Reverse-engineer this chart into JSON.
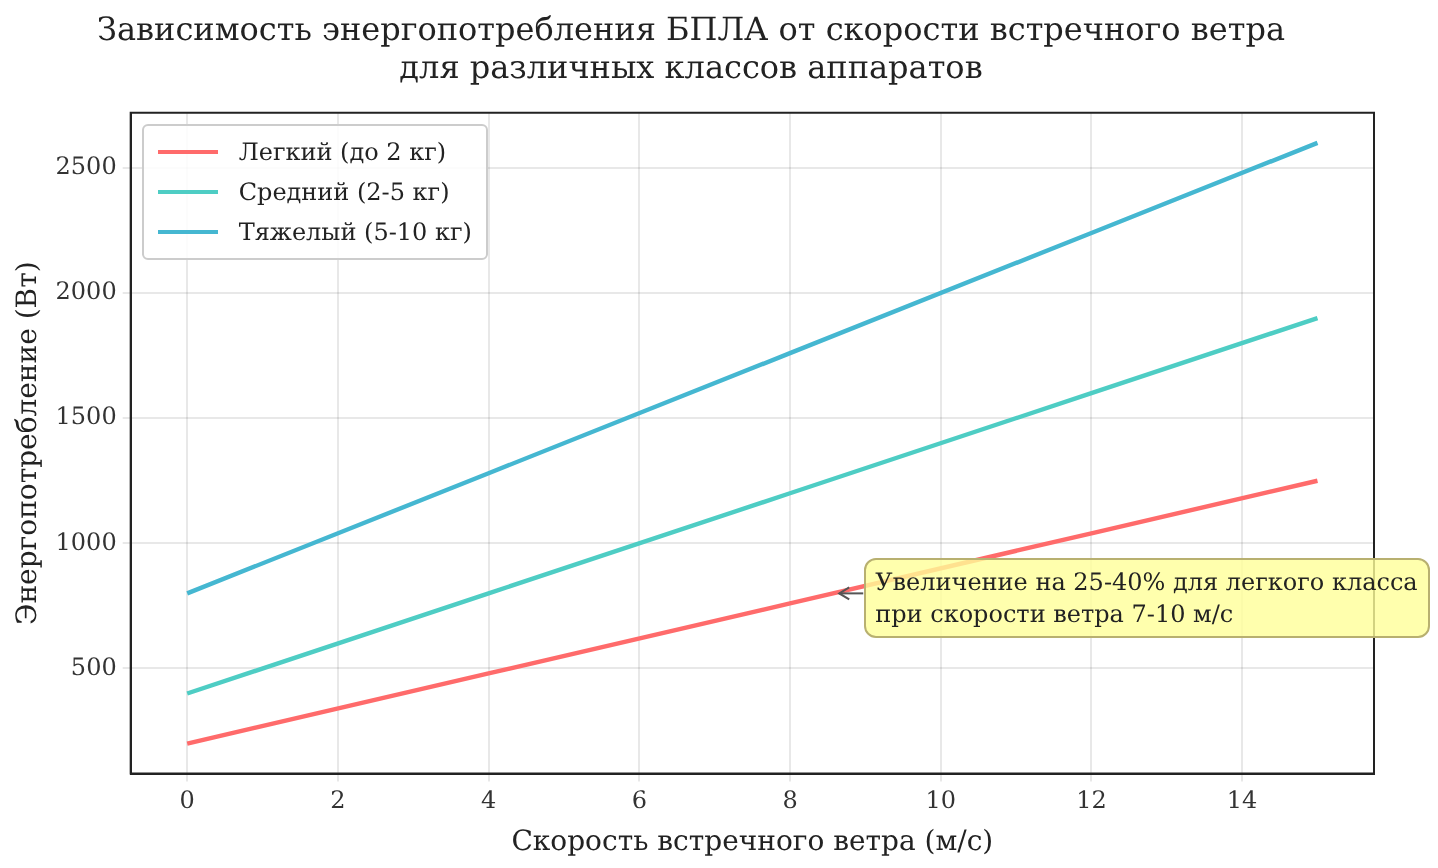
{
  "chart_data": {
    "type": "line",
    "title": "Зависимость энергопотребления БПЛА от скорости встречного ветра\nдля различных классов аппаратов",
    "xlabel": "Скорость встречного ветра (м/с)",
    "ylabel": "Энергопотребление (Вт)",
    "x": [
      0,
      4,
      8,
      12,
      15
    ],
    "series": [
      {
        "name": "Легкий (до 2 кг)",
        "color": "#ff6b6b",
        "values": [
          200,
          480,
          760,
          1040,
          1250
        ]
      },
      {
        "name": "Средний (2-5 кг)",
        "color": "#4ecdc4",
        "values": [
          400,
          800,
          1200,
          1600,
          1900
        ]
      },
      {
        "name": "Тяжелый (5-10 кг)",
        "color": "#45b7d1",
        "values": [
          800,
          1280,
          1760,
          2240,
          2600
        ]
      }
    ],
    "xlim": [
      -0.75,
      15.75
    ],
    "xticks": [
      0,
      2,
      4,
      6,
      8,
      10,
      12,
      14
    ],
    "ylim": [
      80,
      2720
    ],
    "yticks": [
      500,
      1000,
      1500,
      2000,
      2500
    ],
    "grid": true,
    "legend": "top left",
    "marker": "none",
    "line_style": "solid",
    "annotations": [
      {
        "text": "Увеличение на 25-40% для легкого класса\nпри скорости ветра 7-10 м/с",
        "x": 8.6,
        "y": 800
      }
    ]
  }
}
